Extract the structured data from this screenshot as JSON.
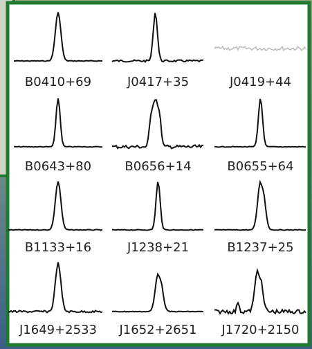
{
  "panels": [
    {
      "label": "B0410+69"
    },
    {
      "label": "J0417+35"
    },
    {
      "label": "J0419+44"
    },
    {
      "label": "B0643+80"
    },
    {
      "label": "B0656+14"
    },
    {
      "label": "B0655+64"
    },
    {
      "label": "B1133+16"
    },
    {
      "label": "J1238+21"
    },
    {
      "label": "B1237+25"
    },
    {
      "label": "J1649+2533"
    },
    {
      "label": "J1652+2651"
    },
    {
      "label": "J1720+2150"
    }
  ]
}
